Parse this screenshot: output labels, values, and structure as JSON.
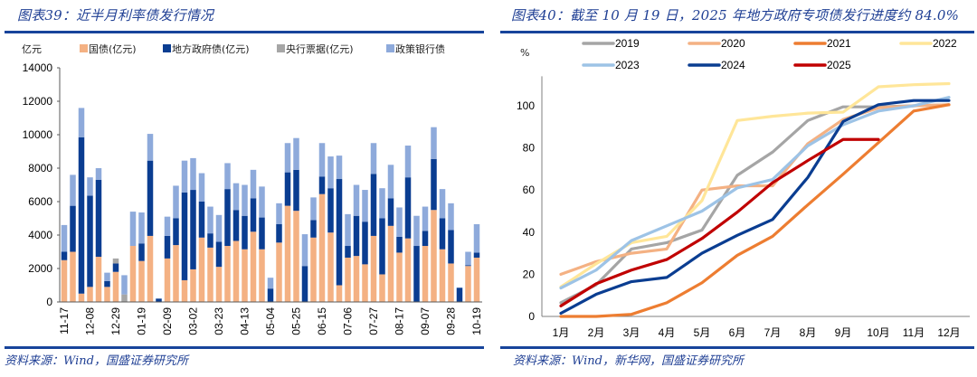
{
  "left": {
    "title": "图表39：近半月利率债发行情况",
    "source": "资料来源：Wind，国盛证券研究所"
  },
  "right": {
    "title": "图表40：截至 10 月 19 日，2025 年地方政府专项债发行进度约 84.0%",
    "source": "资料来源：Wind，新华网，国盛证券研究所"
  },
  "chart_data": [
    {
      "type": "bar",
      "stacked": true,
      "title": "近半月利率债发行情况",
      "ylabel": "亿元",
      "xlabel": "",
      "ylim": [
        0,
        14000
      ],
      "yticks": [
        0,
        2000,
        4000,
        6000,
        8000,
        10000,
        12000,
        14000
      ],
      "grid": false,
      "legend_position": "top",
      "tick_labels": [
        "11-17",
        "12-08",
        "12-29",
        "01-19",
        "02-09",
        "03-02",
        "03-23",
        "04-13",
        "05-04",
        "05-25",
        "06-15",
        "07-06",
        "07-27",
        "08-17",
        "09-07",
        "09-28",
        "10-19"
      ],
      "tick_every": 3,
      "categories": [
        "11-17",
        "11-24",
        "12-01",
        "12-08",
        "12-15",
        "12-22",
        "12-29",
        "01-05",
        "01-12",
        "01-19",
        "01-26",
        "02-02",
        "02-09",
        "02-16",
        "02-23",
        "03-02",
        "03-09",
        "03-16",
        "03-23",
        "03-30",
        "04-06",
        "04-13",
        "04-20",
        "04-27",
        "05-04",
        "05-11",
        "05-18",
        "05-25",
        "06-01",
        "06-08",
        "06-15",
        "06-22",
        "06-29",
        "07-06",
        "07-13",
        "07-20",
        "07-27",
        "08-03",
        "08-10",
        "08-17",
        "08-24",
        "08-31",
        "09-07",
        "09-14",
        "09-21",
        "09-28",
        "10-05",
        "10-12",
        "10-19"
      ],
      "series": [
        {
          "name": "国债(亿元)",
          "color": "#f4b183",
          "values": [
            2500,
            3000,
            500,
            900,
            2700,
            900,
            1800,
            0,
            3350,
            2450,
            3950,
            0,
            2600,
            3400,
            1300,
            1950,
            3850,
            3250,
            2100,
            3350,
            3650,
            3150,
            4200,
            3150,
            0,
            3550,
            5750,
            5450,
            0,
            3850,
            6450,
            4150,
            1000,
            2650,
            2750,
            2250,
            3950,
            1650,
            4550,
            2950,
            3800,
            0,
            3350,
            5500,
            3150,
            2300,
            0,
            2150,
            2650
          ]
        },
        {
          "name": "地方政府债(亿元)",
          "color": "#0a3d91",
          "values": [
            500,
            2750,
            9350,
            5450,
            4600,
            350,
            500,
            0,
            0,
            1050,
            4500,
            200,
            1350,
            1600,
            5250,
            4750,
            2150,
            850,
            1500,
            3400,
            1850,
            2000,
            2000,
            1900,
            800,
            1100,
            2000,
            2450,
            2150,
            1050,
            1050,
            2650,
            6350,
            700,
            2400,
            2550,
            3700,
            3350,
            1650,
            950,
            3650,
            3350,
            900,
            3050,
            1850,
            2000,
            850,
            50,
            300
          ]
        },
        {
          "name": "央行票据(亿元)",
          "color": "#a6a6a6",
          "values": [
            0,
            0,
            0,
            0,
            0,
            0,
            300,
            450,
            0,
            0,
            0,
            0,
            0,
            0,
            0,
            0,
            0,
            0,
            0,
            0,
            0,
            0,
            0,
            0,
            0,
            0,
            0,
            0,
            0,
            0,
            0,
            0,
            0,
            0,
            0,
            0,
            0,
            0,
            0,
            0,
            0,
            0,
            0,
            0,
            0,
            0,
            0,
            0,
            0
          ]
        },
        {
          "name": "政策银行债",
          "color": "#8eaadb",
          "values": [
            1600,
            1850,
            1750,
            1100,
            700,
            500,
            0,
            1150,
            2050,
            1850,
            1600,
            0,
            1150,
            1950,
            1900,
            1900,
            1700,
            1600,
            1600,
            1550,
            1600,
            1850,
            1700,
            1850,
            650,
            1250,
            1750,
            1900,
            1900,
            1350,
            2000,
            1900,
            1400,
            1900,
            1850,
            1900,
            1850,
            1800,
            2000,
            1750,
            1900,
            1800,
            1450,
            1900,
            1750,
            1600,
            0,
            800,
            1700
          ]
        }
      ]
    },
    {
      "type": "line",
      "title": "截至 10 月 19 日，2025 年地方政府专项债发行进度约 84.0%",
      "ylabel": "%",
      "xlabel": "",
      "ylim": [
        0,
        114
      ],
      "yticks": [
        0,
        20,
        40,
        60,
        80,
        100
      ],
      "grid": false,
      "legend_position": "top",
      "x": [
        "1月",
        "2月",
        "3月",
        "4月",
        "5月",
        "6月",
        "7月",
        "8月",
        "9月",
        "10月",
        "11月",
        "12月"
      ],
      "series": [
        {
          "name": "2019",
          "color": "#a5a5a5",
          "values": [
            6.5,
            15,
            32,
            35,
            41,
            67,
            78,
            93,
            99.5,
            99.5,
            100,
            100.5
          ]
        },
        {
          "name": "2020",
          "color": "#f4b183",
          "values": [
            20,
            26,
            30,
            32,
            60,
            62,
            62,
            82,
            93.5,
            99,
            100,
            100.5
          ]
        },
        {
          "name": "2021",
          "color": "#ed7d31",
          "values": [
            0,
            0,
            1,
            6.5,
            16,
            29,
            38,
            53,
            67.5,
            82.5,
            97.5,
            100.5
          ]
        },
        {
          "name": "2022",
          "color": "#ffe699",
          "values": [
            14,
            25,
            35,
            38,
            55,
            93,
            95,
            96.5,
            97,
            109,
            110,
            110.5
          ]
        },
        {
          "name": "2023",
          "color": "#9dc3e6",
          "values": [
            13.5,
            22,
            36,
            43,
            50,
            61,
            65,
            81,
            91,
            97.5,
            100,
            104
          ]
        },
        {
          "name": "2024",
          "color": "#0a3d91",
          "values": [
            1.5,
            10.5,
            16.5,
            18.5,
            30,
            38.5,
            46,
            66,
            92.5,
            100.5,
            102.5,
            102.5
          ]
        },
        {
          "name": "2025",
          "color": "#c00000",
          "values": [
            5,
            15.5,
            22,
            27,
            37,
            49.5,
            63.5,
            74,
            84,
            84
          ]
        }
      ]
    }
  ]
}
